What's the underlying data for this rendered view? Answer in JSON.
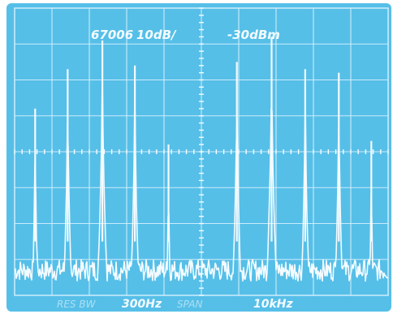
{
  "colors": {
    "screen": "#56bfe8",
    "trace": "#f4fbff",
    "grid": "#d8f0fc",
    "bezel": "#ffffff"
  },
  "readout": {
    "id": "67006",
    "scale": "10dB/",
    "ref_level": "-30dBm",
    "bottom_left": "RES BW",
    "bottom_mid": "300Hz",
    "bottom_span_label": "SPAN",
    "bottom_right": "10kHz"
  },
  "chart_data": {
    "type": "line",
    "title": "",
    "xlabel": "",
    "ylabel": "",
    "y_unit": "dBm",
    "ref_level_dbm": -30,
    "scale_db_per_div": 10,
    "ylim": [
      -110,
      -30
    ],
    "grid": true,
    "grid_divisions": [
      10,
      8
    ],
    "x_divisions_range": [
      0,
      10
    ],
    "series": [
      {
        "values_x_div": [
          0.55,
          1.42,
          2.35,
          3.22,
          4.12,
          5.95,
          6.88,
          7.78,
          8.68,
          9.55
        ],
        "values_dbm": [
          -58,
          -47,
          -39,
          -46,
          -68,
          -45,
          -38,
          -47,
          -48,
          -67
        ]
      }
    ],
    "noise_floor_dbm": -103
  }
}
